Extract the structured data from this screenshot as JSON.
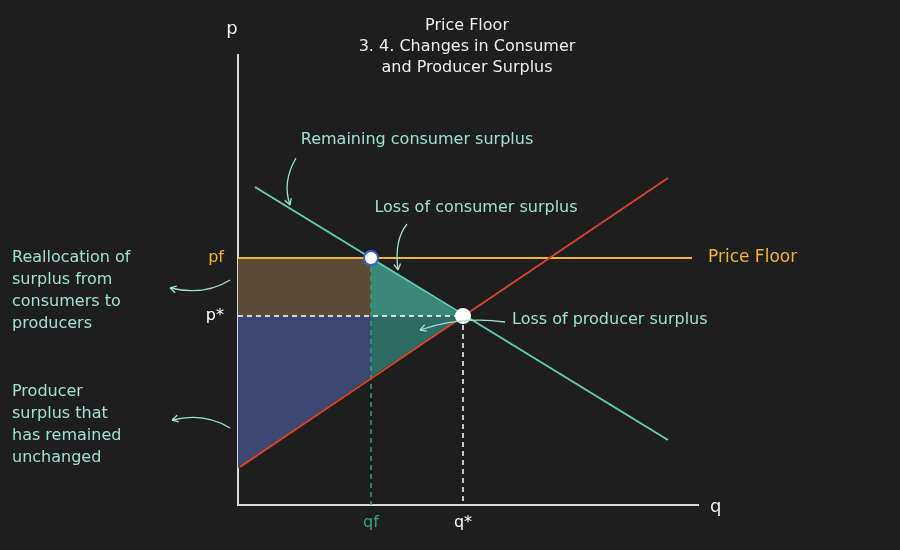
{
  "chart_data": {
    "type": "line",
    "title": [
      "Price Floor",
      "3. 4. Changes in Consumer",
      "and Producer Surplus"
    ],
    "x_label": "q",
    "y_label": "p",
    "xlim": [
      0,
      460
    ],
    "ylim": [
      0,
      450
    ],
    "xticks": [
      {
        "value": 133,
        "label": "qf"
      },
      {
        "value": 225,
        "label": "q*"
      }
    ],
    "yticks": [
      {
        "value": 189,
        "label": "p*"
      },
      {
        "value": 247,
        "label": "pf"
      }
    ],
    "grid": false,
    "series": [
      {
        "color": "#62ccb4",
        "x": [
          17,
          430
        ],
        "values": [
          318,
          65
        ],
        "line_style": "solid"
      },
      {
        "color": "#d9452b",
        "x": [
          2,
          430
        ],
        "values": [
          38,
          327
        ],
        "line_style": "solid"
      },
      {
        "name": "Price Floor",
        "color": "#f2b530",
        "x": [
          0,
          454
        ],
        "values": [
          247,
          247
        ],
        "line_style": "solid"
      },
      {
        "color": "#ffffff",
        "x": [
          0,
          225
        ],
        "values": [
          189,
          189
        ],
        "line_style": "dashed"
      },
      {
        "color": "#ffffff",
        "x": [
          225,
          225
        ],
        "values": [
          189,
          0
        ],
        "line_style": "dashed"
      },
      {
        "color": "#2fa37f",
        "x": [
          133,
          133
        ],
        "values": [
          247,
          0
        ],
        "line_style": "dashed"
      },
      {
        "type": "scatter",
        "marker": "circle",
        "color": "#ffffff",
        "x": [
          133,
          225
        ],
        "values": [
          247,
          189
        ]
      }
    ],
    "regions": [
      {
        "color": "#5e4b36",
        "x": [
          0,
          133,
          133,
          0
        ],
        "y": [
          189,
          189,
          247,
          247
        ]
      },
      {
        "color": "#3d4870",
        "x": [
          0,
          133,
          133,
          0
        ],
        "y": [
          189,
          189,
          128,
          37
        ]
      },
      {
        "color": "#3a8877",
        "x": [
          133,
          225,
          133
        ],
        "y": [
          247,
          189,
          189
        ]
      },
      {
        "color": "#2d6b60",
        "x": [
          133,
          225,
          133
        ],
        "y": [
          189,
          189,
          128
        ]
      }
    ],
    "annotations": [
      "Remaining consumer surplus",
      "Loss of consumer surplus",
      "Loss of producer surplus",
      "Reallocation of\nsurplus from\nconsumers to\nproducers",
      "Producer\nsurplus that\nhas remained\nunchanged"
    ]
  }
}
